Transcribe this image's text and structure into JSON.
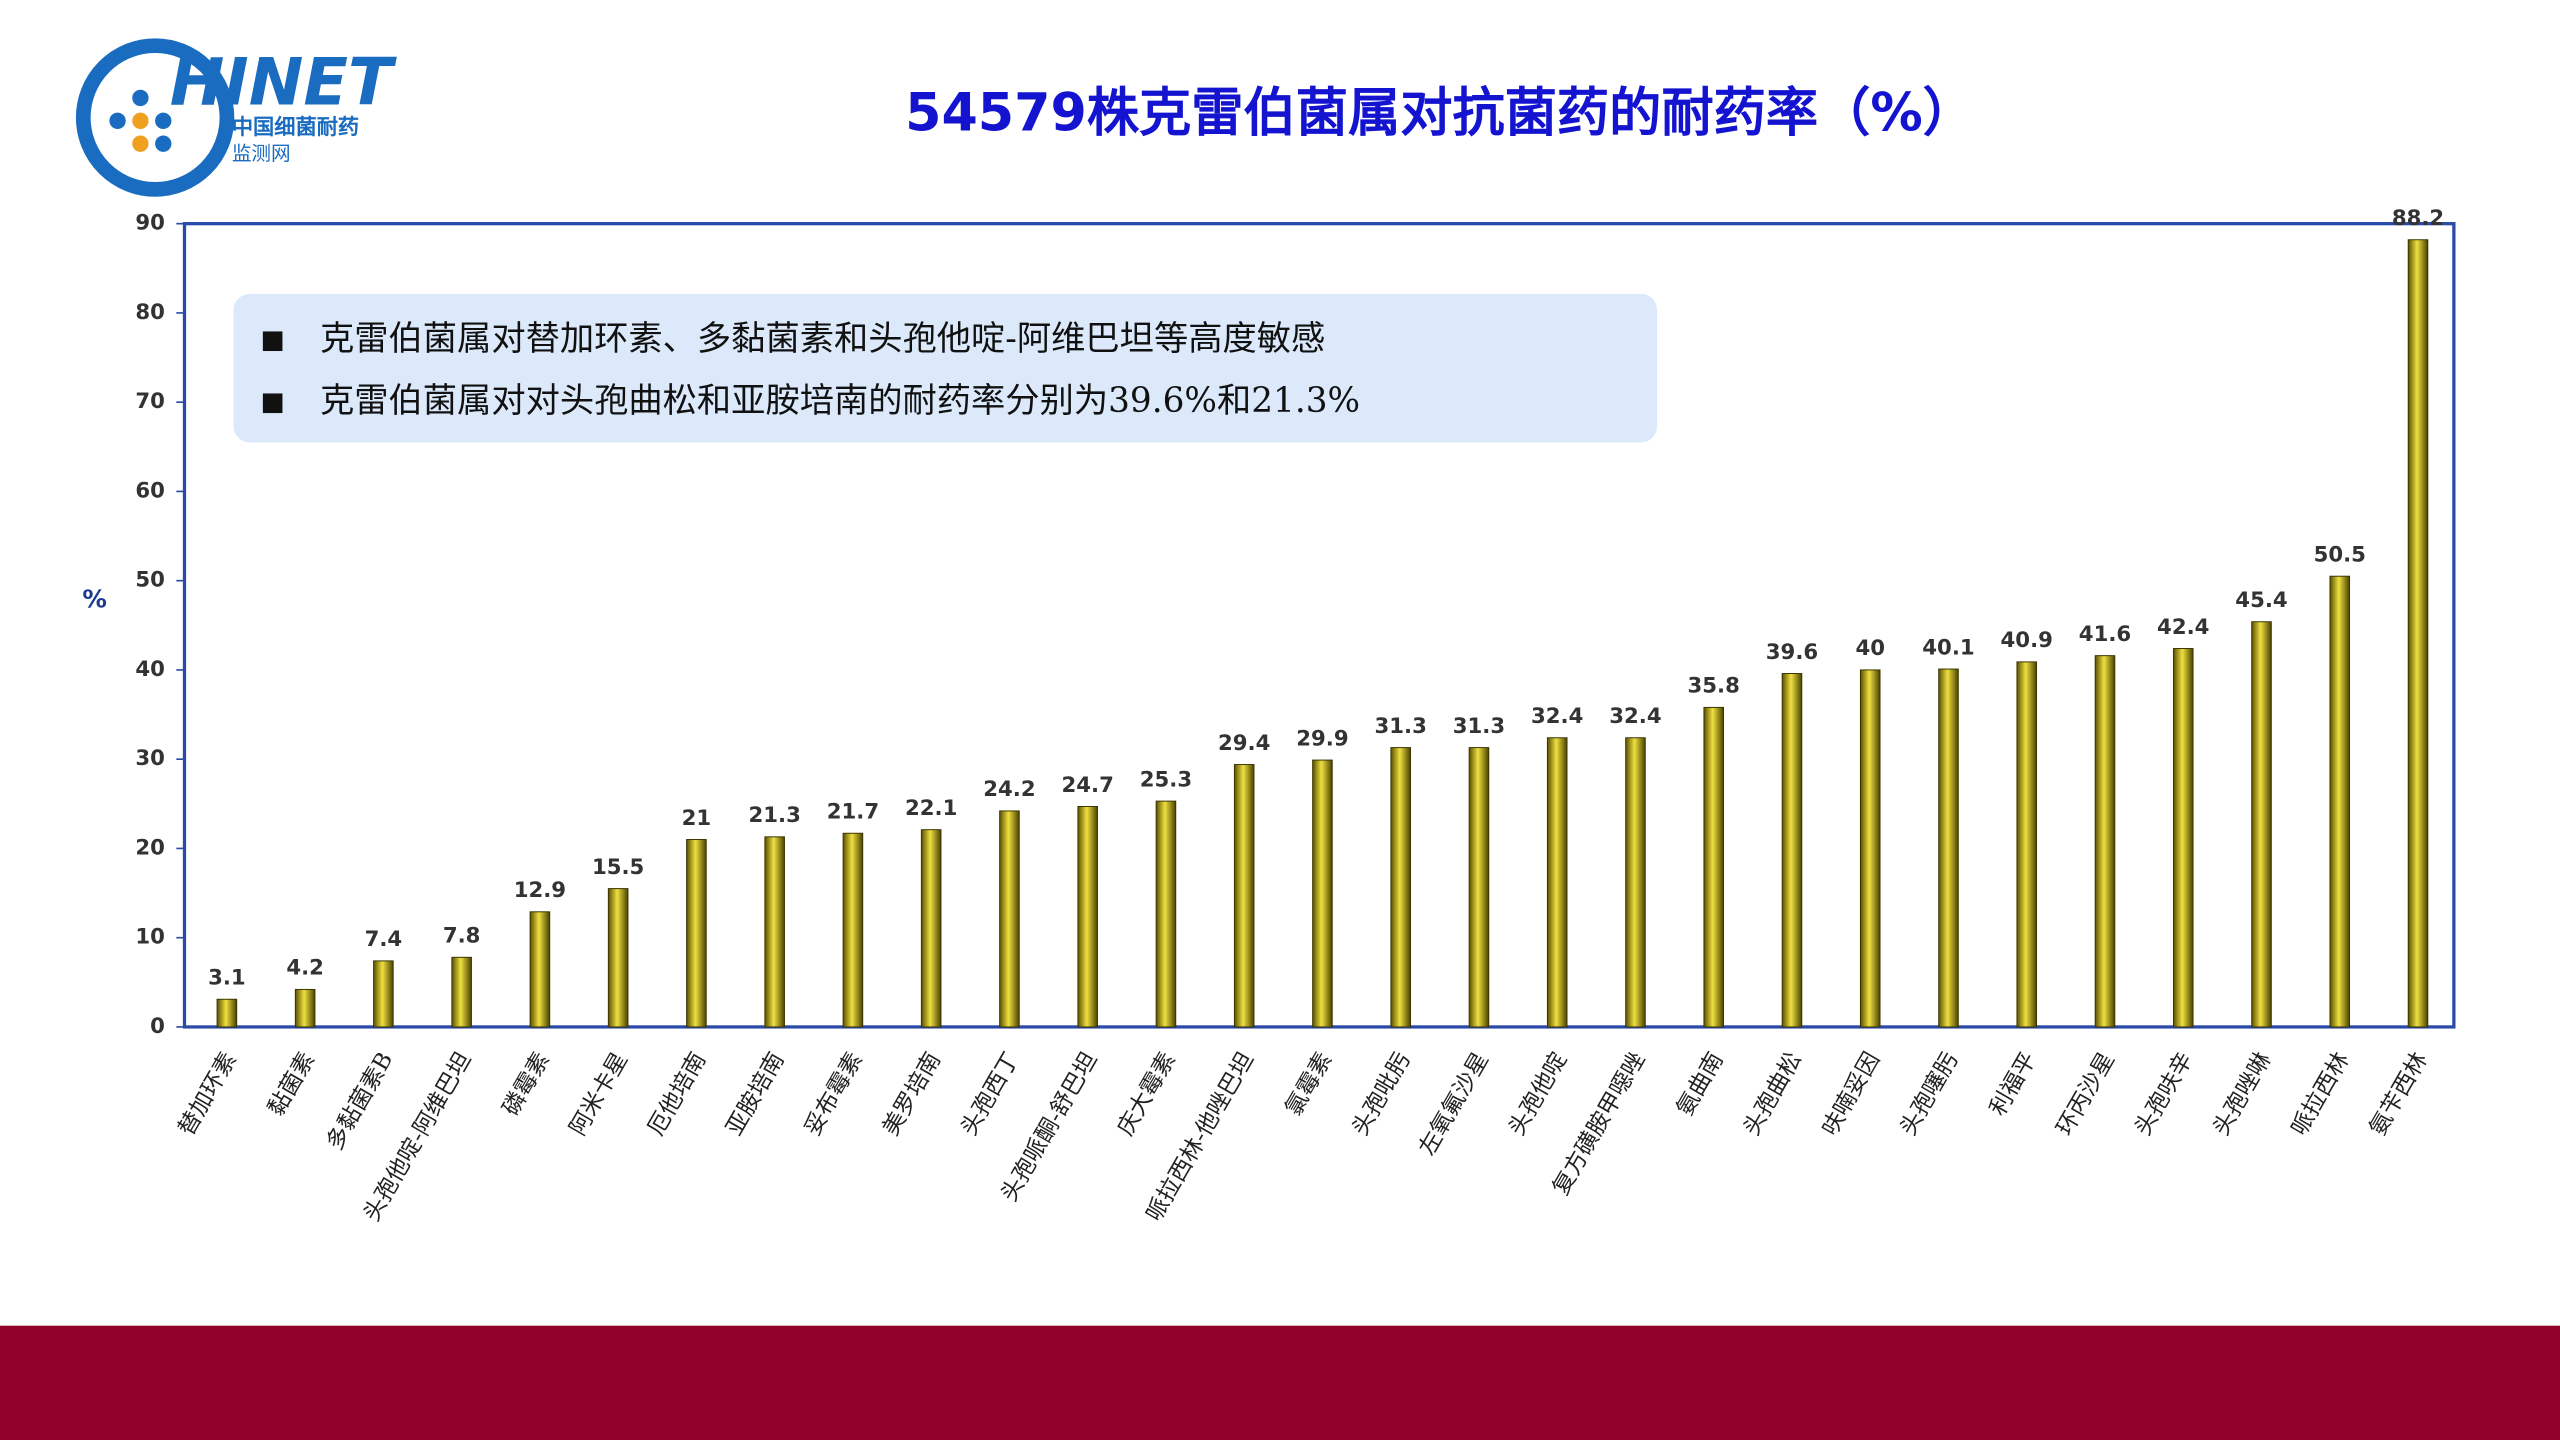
{
  "logo": {
    "brand": "HINET",
    "line1": "中国细菌耐药",
    "line2": "监测网"
  },
  "chart_data": {
    "type": "bar",
    "title": "54579株克雷伯菌属对抗菌药的耐药率（%）",
    "ylabel": "%",
    "notes": [
      "克雷伯菌属对替加环素、多黏菌素和头孢他啶-阿维巴坦等高度敏感",
      "克雷伯菌属对对头孢曲松和亚胺培南的耐药率分别为39.6%和21.3%"
    ],
    "categories": [
      "替加环素",
      "黏菌素",
      "多黏菌素B",
      "头孢他啶-阿维巴坦",
      "磷霉素",
      "阿米卡星",
      "厄他培南",
      "亚胺培南",
      "妥布霉素",
      "美罗培南",
      "头孢西丁",
      "头孢哌酮-舒巴坦",
      "庆大霉素",
      "哌拉西林-他唑巴坦",
      "氯霉素",
      "头孢吡肟",
      "左氧氟沙星",
      "头孢他啶",
      "复方磺胺甲噁唑",
      "氨曲南",
      "头孢曲松",
      "呋喃妥因",
      "头孢噻肟",
      "利福平",
      "环丙沙星",
      "头孢呋辛",
      "头孢唑啉",
      "哌拉西林",
      "氨苄西林"
    ],
    "values": [
      3.1,
      4.2,
      7.4,
      7.8,
      12.9,
      15.5,
      21,
      21.3,
      21.7,
      22.1,
      24.2,
      24.7,
      25.3,
      29.4,
      29.9,
      31.3,
      31.3,
      32.4,
      32.4,
      35.8,
      39.6,
      40,
      40.1,
      40.9,
      41.6,
      42.4,
      45.4,
      50.5,
      88.2
    ],
    "color": "#c8b400",
    "ylim": [
      0,
      90
    ],
    "yticks": [
      0,
      10,
      20,
      30,
      40,
      50,
      60,
      70,
      80,
      90
    ]
  }
}
